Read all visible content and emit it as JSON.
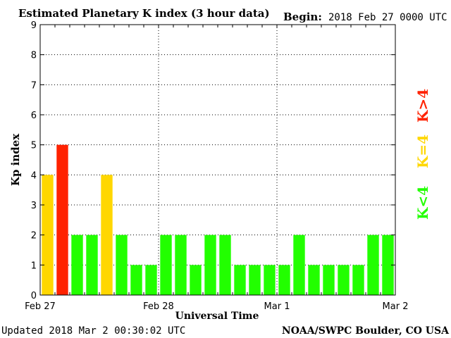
{
  "chart_data": {
    "type": "bar",
    "title": "Estimated Planetary K index (3 hour data)",
    "begin_label": "Begin:",
    "begin_value": "2018 Feb 27 0000 UTC",
    "ylabel": "Kp index",
    "xlabel": "Universal Time",
    "ylim": [
      0,
      9
    ],
    "yticks": [
      "0",
      "1",
      "2",
      "3",
      "4",
      "5",
      "6",
      "7",
      "8",
      "9"
    ],
    "xtick_labels": [
      "Feb 27",
      "Feb 28",
      "Mar 1",
      "Mar 2"
    ],
    "values": [
      4,
      5,
      2,
      2,
      4,
      2,
      1,
      1,
      2,
      2,
      1,
      2,
      2,
      1,
      1,
      1,
      1,
      2,
      1,
      1,
      1,
      1,
      2,
      2
    ],
    "colors": {
      "below4": "#22ff00",
      "equal4": "#ffd700",
      "above4": "#ff2200"
    },
    "legend": {
      "above4": "K>4",
      "equal4": "K=4",
      "below4": "K<4"
    },
    "grid": true
  },
  "footer": {
    "updated": "Updated 2018 Mar  2 00:30:02 UTC",
    "credit": "NOAA/SWPC Boulder, CO USA"
  }
}
